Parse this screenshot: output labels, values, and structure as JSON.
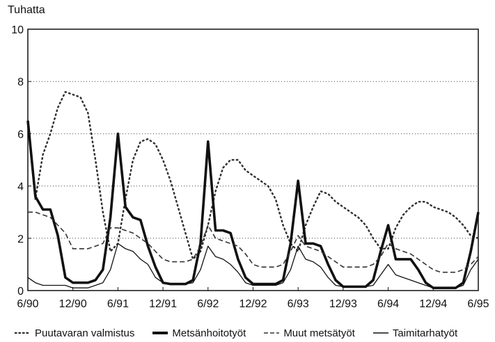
{
  "chart_data": {
    "type": "line",
    "title": "",
    "ylabel": "Tuhatta",
    "xlabel": "",
    "ylim": [
      0,
      10
    ],
    "yticks": [
      0,
      2,
      4,
      6,
      8,
      10
    ],
    "xticks": [
      "6/90",
      "12/90",
      "6/91",
      "12/91",
      "6/92",
      "12/92",
      "6/93",
      "12/93",
      "6/94",
      "12/94",
      "6/95"
    ],
    "grid": "horizontal dotted",
    "legend": "bottom",
    "x": [
      "6/90",
      "7/90",
      "8/90",
      "9/90",
      "10/90",
      "11/90",
      "12/90",
      "1/91",
      "2/91",
      "3/91",
      "4/91",
      "5/91",
      "6/91",
      "7/91",
      "8/91",
      "9/91",
      "10/91",
      "11/91",
      "12/91",
      "1/92",
      "2/92",
      "3/92",
      "4/92",
      "5/92",
      "6/92",
      "7/92",
      "8/92",
      "9/92",
      "10/92",
      "11/92",
      "12/92",
      "1/93",
      "2/93",
      "3/93",
      "4/93",
      "5/93",
      "6/93",
      "7/93",
      "8/93",
      "9/93",
      "10/93",
      "11/93",
      "12/93",
      "1/94",
      "2/94",
      "3/94",
      "4/94",
      "5/94",
      "6/94",
      "7/94",
      "8/94",
      "9/94",
      "10/94",
      "11/94",
      "12/94",
      "1/95",
      "2/95",
      "3/95",
      "4/95",
      "5/95",
      "6/95"
    ],
    "series": [
      {
        "name": "Puutavaran valmistus",
        "style": "dotted",
        "color": "#333333",
        "values": [
          6.4,
          3.5,
          5.2,
          6.0,
          7.0,
          7.6,
          7.5,
          7.4,
          6.8,
          5.0,
          3.0,
          1.5,
          1.8,
          3.5,
          5.0,
          5.7,
          5.8,
          5.6,
          5.0,
          4.2,
          3.2,
          2.2,
          1.2,
          1.5,
          2.5,
          3.8,
          4.7,
          5.0,
          5.0,
          4.6,
          4.4,
          4.2,
          4.0,
          3.5,
          2.5,
          1.8,
          1.5,
          2.5,
          3.2,
          3.8,
          3.7,
          3.4,
          3.2,
          3.0,
          2.8,
          2.5,
          2.0,
          1.6,
          1.6,
          2.4,
          2.9,
          3.2,
          3.4,
          3.4,
          3.2,
          3.1,
          3.0,
          2.8,
          2.5,
          2.1,
          2.0
        ]
      },
      {
        "name": "Metsänhoitotyöt",
        "style": "thick",
        "color": "#111111",
        "values": [
          6.5,
          3.6,
          3.1,
          3.1,
          2.1,
          0.5,
          0.3,
          0.3,
          0.3,
          0.4,
          0.8,
          2.8,
          6.0,
          3.2,
          2.8,
          2.7,
          1.7,
          0.9,
          0.3,
          0.25,
          0.25,
          0.25,
          0.4,
          1.8,
          5.7,
          2.3,
          2.3,
          2.2,
          1.2,
          0.5,
          0.25,
          0.25,
          0.25,
          0.25,
          0.4,
          1.8,
          4.2,
          1.8,
          1.8,
          1.7,
          1.0,
          0.4,
          0.15,
          0.15,
          0.15,
          0.15,
          0.4,
          1.5,
          2.5,
          1.2,
          1.2,
          1.2,
          0.8,
          0.3,
          0.1,
          0.1,
          0.1,
          0.1,
          0.3,
          1.5,
          3.0
        ]
      },
      {
        "name": "Muut metsätyöt",
        "style": "dashed",
        "color": "#333333",
        "values": [
          3.0,
          3.0,
          2.9,
          2.8,
          2.5,
          2.2,
          1.6,
          1.6,
          1.6,
          1.7,
          1.8,
          2.4,
          2.4,
          2.3,
          2.2,
          2.0,
          1.8,
          1.5,
          1.2,
          1.1,
          1.1,
          1.1,
          1.2,
          1.7,
          2.5,
          2.0,
          1.9,
          1.8,
          1.7,
          1.4,
          1.0,
          0.9,
          0.9,
          0.9,
          1.0,
          1.5,
          2.1,
          1.7,
          1.6,
          1.5,
          1.3,
          1.1,
          0.9,
          0.9,
          0.9,
          0.9,
          1.0,
          1.3,
          1.8,
          1.6,
          1.5,
          1.4,
          1.2,
          1.0,
          0.8,
          0.7,
          0.7,
          0.7,
          0.8,
          1.0,
          1.3
        ]
      },
      {
        "name": "Taimitarhatyöt",
        "style": "solid",
        "color": "#111111",
        "values": [
          0.5,
          0.3,
          0.2,
          0.2,
          0.2,
          0.2,
          0.1,
          0.1,
          0.1,
          0.2,
          0.3,
          0.8,
          1.8,
          1.6,
          1.5,
          1.2,
          1.0,
          0.5,
          0.3,
          0.25,
          0.25,
          0.25,
          0.3,
          0.8,
          1.7,
          1.3,
          1.2,
          1.0,
          0.7,
          0.3,
          0.2,
          0.2,
          0.2,
          0.2,
          0.3,
          0.8,
          1.7,
          1.2,
          1.1,
          0.9,
          0.5,
          0.2,
          0.15,
          0.15,
          0.15,
          0.15,
          0.2,
          0.6,
          1.0,
          0.6,
          0.5,
          0.4,
          0.3,
          0.2,
          0.1,
          0.1,
          0.1,
          0.1,
          0.2,
          0.8,
          1.2
        ]
      }
    ]
  }
}
